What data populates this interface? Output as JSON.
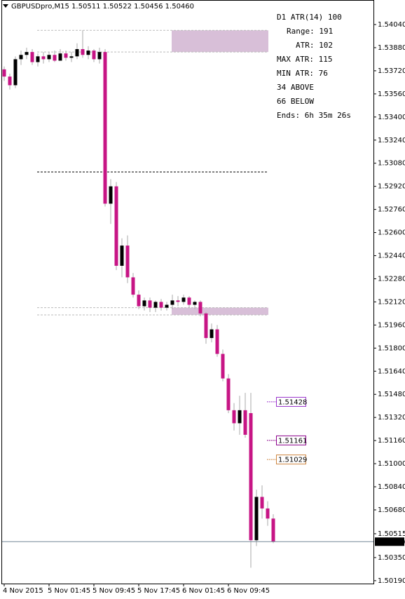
{
  "chart_data": {
    "type": "candlestick",
    "title": "GBPUSDpro,M15  1.50511 1.50522 1.50456 1.50460",
    "categories": [
      "4 Nov 2015",
      null,
      null,
      null,
      null,
      null,
      null,
      null,
      "5 Nov 01:45",
      null,
      null,
      null,
      null,
      null,
      null,
      null,
      "5 Nov 09:45",
      null,
      null,
      null,
      null,
      null,
      null,
      null,
      "5 Nov 17:45",
      null,
      null,
      null,
      null,
      null,
      null,
      null,
      "6 Nov 01:45",
      null,
      null,
      null,
      null,
      null,
      null,
      null,
      "6 Nov 09:45",
      null,
      null,
      null,
      null,
      null,
      null,
      null,
      null
    ],
    "open": [
      1.5373,
      1.5368,
      1.5362,
      1.538,
      1.5383,
      1.5385,
      1.5378,
      1.5382,
      1.538,
      1.5383,
      1.5379,
      1.5384,
      1.5381,
      1.5382,
      1.5387,
      1.5383,
      1.5386,
      1.538,
      1.5385,
      1.528,
      1.5292,
      1.5237,
      1.5251,
      1.5229,
      1.5217,
      1.5209,
      1.5213,
      1.5208,
      1.5212,
      1.5208,
      1.521,
      1.5213,
      1.5212,
      1.5215,
      1.521,
      1.5212,
      1.5204,
      1.5187,
      1.5193,
      1.5176,
      1.5159,
      1.5137,
      1.5128,
      1.5137,
      1.5135,
      1.5047,
      1.5077,
      1.5069,
      1.5062
    ],
    "high": [
      1.5375,
      1.537,
      1.5382,
      1.5386,
      1.5388,
      1.5387,
      1.5384,
      1.5385,
      1.5385,
      1.5386,
      1.5387,
      1.5386,
      1.5385,
      1.5391,
      1.54,
      1.5389,
      1.5387,
      1.5388,
      1.5387,
      1.5297,
      1.5295,
      1.5256,
      1.5258,
      1.5232,
      1.522,
      1.5215,
      1.5215,
      1.5213,
      1.5214,
      1.5212,
      1.5217,
      1.5216,
      1.5217,
      1.5216,
      1.5213,
      1.5213,
      1.5205,
      1.5197,
      1.5196,
      1.5179,
      1.5162,
      1.5142,
      1.5147,
      1.5149,
      1.5149,
      1.5082,
      1.5085,
      1.5074,
      1.5065
    ],
    "low": [
      1.5365,
      1.5359,
      1.536,
      1.5376,
      1.538,
      1.5376,
      1.5375,
      1.5377,
      1.5378,
      1.5378,
      1.5379,
      1.5379,
      1.5378,
      1.538,
      1.5381,
      1.538,
      1.5378,
      1.5377,
      1.5278,
      1.5266,
      1.5234,
      1.5229,
      1.5225,
      1.5215,
      1.5207,
      1.5206,
      1.5205,
      1.5205,
      1.5206,
      1.5206,
      1.5207,
      1.5209,
      1.521,
      1.5208,
      1.5207,
      1.5202,
      1.5183,
      1.5184,
      1.5174,
      1.5157,
      1.5135,
      1.5123,
      1.512,
      1.5118,
      1.5028,
      1.5043,
      1.5062,
      1.5057,
      1.5045
    ],
    "close": [
      1.5368,
      1.5362,
      1.538,
      1.5383,
      1.5385,
      1.5378,
      1.5382,
      1.538,
      1.5383,
      1.5379,
      1.5384,
      1.5381,
      1.5382,
      1.5387,
      1.5383,
      1.5386,
      1.538,
      1.5385,
      1.528,
      1.5292,
      1.5237,
      1.5251,
      1.5229,
      1.5217,
      1.5209,
      1.5213,
      1.5208,
      1.5212,
      1.5208,
      1.521,
      1.5213,
      1.5212,
      1.5215,
      1.521,
      1.5212,
      1.5204,
      1.5187,
      1.5193,
      1.5176,
      1.5159,
      1.5137,
      1.5128,
      1.5137,
      1.512,
      1.5047,
      1.5077,
      1.5069,
      1.5062,
      1.5046
    ],
    "up_color": "#000000",
    "down_color": "#c71585",
    "wick_color": "#a9a9a9",
    "ylim": [
      1.5017,
      1.5421
    ],
    "yticks": [
      {
        "value": 1.5404,
        "label": "1.54040"
      },
      {
        "value": 1.5388,
        "label": "1.53880"
      },
      {
        "value": 1.5372,
        "label": "1.53720"
      },
      {
        "value": 1.5356,
        "label": "1.53560"
      },
      {
        "value": 1.534,
        "label": "1.53400"
      },
      {
        "value": 1.5324,
        "label": "1.53240"
      },
      {
        "value": 1.5308,
        "label": "1.53080"
      },
      {
        "value": 1.5292,
        "label": "1.52920"
      },
      {
        "value": 1.5276,
        "label": "1.52760"
      },
      {
        "value": 1.526,
        "label": "1.52600"
      },
      {
        "value": 1.5244,
        "label": "1.52440"
      },
      {
        "value": 1.5228,
        "label": "1.52280"
      },
      {
        "value": 1.5212,
        "label": "1.52120"
      },
      {
        "value": 1.5196,
        "label": "1.51960"
      },
      {
        "value": 1.518,
        "label": "1.51800"
      },
      {
        "value": 1.5164,
        "label": "1.51640"
      },
      {
        "value": 1.5148,
        "label": "1.51480"
      },
      {
        "value": 1.5132,
        "label": "1.51320"
      },
      {
        "value": 1.5116,
        "label": "1.51160"
      },
      {
        "value": 1.51,
        "label": "1.51000"
      },
      {
        "value": 1.5084,
        "label": "1.50840"
      },
      {
        "value": 1.5068,
        "label": "1.50680"
      },
      {
        "value": 1.50515,
        "label": "1.50515"
      },
      {
        "value": 1.5035,
        "label": "1.50350"
      },
      {
        "value": 1.5019,
        "label": "1.50190"
      }
    ],
    "current_price": {
      "value": 1.5046,
      "label": "1.50460"
    },
    "zones": [
      {
        "from": 1.54,
        "to": 1.5385,
        "color": "#d8bfd8"
      },
      {
        "from": 1.5208,
        "to": 1.5203,
        "color": "#d8bfd8"
      }
    ],
    "level": 1.5302,
    "price_markers": [
      {
        "value": 1.51428,
        "color": "#9932cc"
      },
      {
        "value": 1.51161,
        "color": "#8b008b"
      },
      {
        "value": 1.51029,
        "color": "#cd853f"
      }
    ],
    "annotations": [
      {
        "text": "D1 ATR(14) 100",
        "color": "#4682b4"
      },
      {
        "text": "Range: 191",
        "color": "#e000e0"
      },
      {
        "text": "ATR: 102",
        "color": "#9400d3"
      },
      {
        "text": "MAX ATR: 115",
        "color": "#d2691e"
      },
      {
        "text": "MIN ATR: 76",
        "color": "#d2691e"
      },
      {
        "text": "34 ABOVE",
        "color": "#0000cd"
      },
      {
        "text": "66 BELOW",
        "color": "#0000cd"
      },
      {
        "text": "Ends: 6h 35m 26s",
        "color": "#808080"
      }
    ]
  }
}
